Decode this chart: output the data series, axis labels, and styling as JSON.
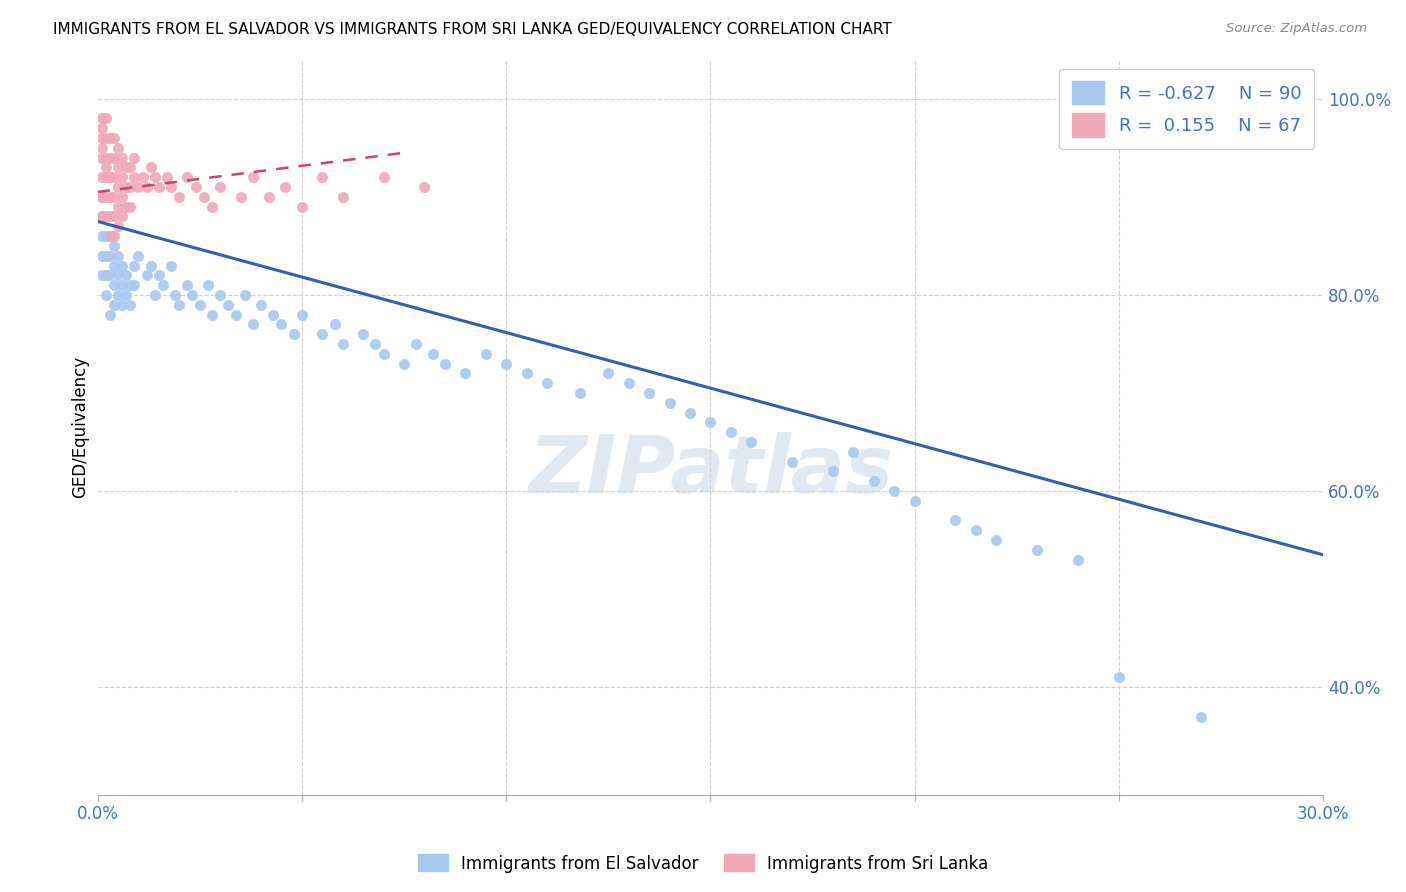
{
  "title": "IMMIGRANTS FROM EL SALVADOR VS IMMIGRANTS FROM SRI LANKA GED/EQUIVALENCY CORRELATION CHART",
  "source": "Source: ZipAtlas.com",
  "ylabel": "GED/Equivalency",
  "legend_entry1": "R = -0.627   N = 90",
  "legend_entry2": "R =  0.155   N = 67",
  "legend_label1": "Immigrants from El Salvador",
  "legend_label2": "Immigrants from Sri Lanka",
  "color_el_salvador": "#a8c8f0",
  "color_sri_lanka": "#f0a8b8",
  "trendline_color_el_salvador": "#3060b0",
  "trendline_color_sri_lanka": "#d04070",
  "watermark": "ZIPatlas",
  "xlim": [
    0.0,
    0.3
  ],
  "ylim": [
    0.29,
    1.04
  ],
  "trendline_es_x0": 0.0,
  "trendline_es_y0": 0.875,
  "trendline_es_x1": 0.3,
  "trendline_es_y1": 0.535,
  "trendline_sl_x0": 0.0,
  "trendline_sl_y0": 0.905,
  "trendline_sl_x1": 0.075,
  "trendline_sl_y1": 0.945,
  "es_x": [
    0.001,
    0.001,
    0.001,
    0.001,
    0.001,
    0.002,
    0.002,
    0.002,
    0.002,
    0.003,
    0.003,
    0.003,
    0.003,
    0.004,
    0.004,
    0.004,
    0.004,
    0.005,
    0.005,
    0.005,
    0.006,
    0.006,
    0.006,
    0.007,
    0.007,
    0.008,
    0.008,
    0.009,
    0.009,
    0.01,
    0.012,
    0.013,
    0.014,
    0.015,
    0.016,
    0.018,
    0.019,
    0.02,
    0.022,
    0.023,
    0.025,
    0.027,
    0.028,
    0.03,
    0.032,
    0.034,
    0.036,
    0.038,
    0.04,
    0.043,
    0.045,
    0.048,
    0.05,
    0.055,
    0.058,
    0.06,
    0.065,
    0.068,
    0.07,
    0.075,
    0.078,
    0.082,
    0.085,
    0.09,
    0.095,
    0.1,
    0.105,
    0.11,
    0.118,
    0.125,
    0.13,
    0.135,
    0.14,
    0.145,
    0.15,
    0.155,
    0.16,
    0.17,
    0.18,
    0.185,
    0.19,
    0.195,
    0.2,
    0.21,
    0.215,
    0.22,
    0.23,
    0.24,
    0.25,
    0.27
  ],
  "es_y": [
    0.84,
    0.86,
    0.88,
    0.9,
    0.82,
    0.84,
    0.82,
    0.86,
    0.8,
    0.84,
    0.86,
    0.82,
    0.78,
    0.83,
    0.85,
    0.81,
    0.79,
    0.82,
    0.84,
    0.8,
    0.81,
    0.83,
    0.79,
    0.82,
    0.8,
    0.81,
    0.79,
    0.83,
    0.81,
    0.84,
    0.82,
    0.83,
    0.8,
    0.82,
    0.81,
    0.83,
    0.8,
    0.79,
    0.81,
    0.8,
    0.79,
    0.81,
    0.78,
    0.8,
    0.79,
    0.78,
    0.8,
    0.77,
    0.79,
    0.78,
    0.77,
    0.76,
    0.78,
    0.76,
    0.77,
    0.75,
    0.76,
    0.75,
    0.74,
    0.73,
    0.75,
    0.74,
    0.73,
    0.72,
    0.74,
    0.73,
    0.72,
    0.71,
    0.7,
    0.72,
    0.71,
    0.7,
    0.69,
    0.68,
    0.67,
    0.66,
    0.65,
    0.63,
    0.62,
    0.64,
    0.61,
    0.6,
    0.59,
    0.57,
    0.56,
    0.55,
    0.54,
    0.53,
    0.41,
    0.37
  ],
  "sl_x": [
    0.001,
    0.001,
    0.001,
    0.001,
    0.001,
    0.001,
    0.001,
    0.001,
    0.002,
    0.002,
    0.002,
    0.002,
    0.002,
    0.002,
    0.002,
    0.003,
    0.003,
    0.003,
    0.003,
    0.003,
    0.003,
    0.004,
    0.004,
    0.004,
    0.004,
    0.004,
    0.004,
    0.005,
    0.005,
    0.005,
    0.005,
    0.005,
    0.006,
    0.006,
    0.006,
    0.006,
    0.007,
    0.007,
    0.007,
    0.008,
    0.008,
    0.008,
    0.009,
    0.009,
    0.01,
    0.011,
    0.012,
    0.013,
    0.014,
    0.015,
    0.017,
    0.018,
    0.02,
    0.022,
    0.024,
    0.026,
    0.028,
    0.03,
    0.035,
    0.038,
    0.042,
    0.046,
    0.05,
    0.055,
    0.06,
    0.07,
    0.08
  ],
  "sl_y": [
    0.96,
    0.98,
    0.94,
    0.92,
    0.9,
    0.88,
    0.95,
    0.97,
    0.96,
    0.98,
    0.94,
    0.92,
    0.9,
    0.88,
    0.93,
    0.96,
    0.94,
    0.92,
    0.9,
    0.88,
    0.86,
    0.96,
    0.94,
    0.92,
    0.9,
    0.88,
    0.86,
    0.95,
    0.93,
    0.91,
    0.89,
    0.87,
    0.94,
    0.92,
    0.9,
    0.88,
    0.93,
    0.91,
    0.89,
    0.93,
    0.91,
    0.89,
    0.94,
    0.92,
    0.91,
    0.92,
    0.91,
    0.93,
    0.92,
    0.91,
    0.92,
    0.91,
    0.9,
    0.92,
    0.91,
    0.9,
    0.89,
    0.91,
    0.9,
    0.92,
    0.9,
    0.91,
    0.89,
    0.92,
    0.9,
    0.92,
    0.91
  ]
}
